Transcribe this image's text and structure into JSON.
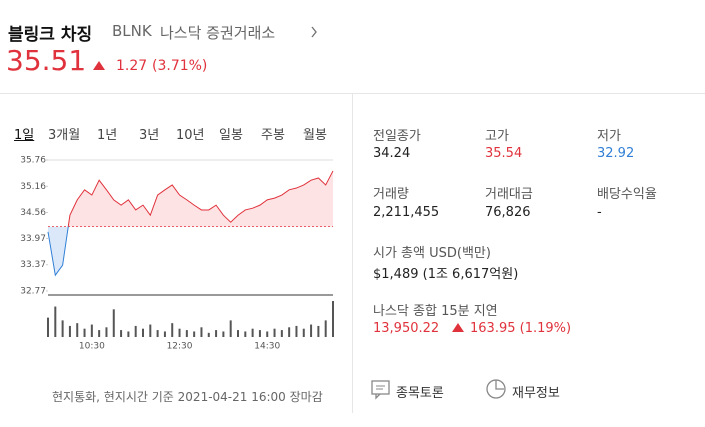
{
  "header": {
    "name": "블링크 차징",
    "ticker": "BLNK",
    "exchange": "나스닥 증권거래소",
    "price": "35.51",
    "change": "1.27",
    "change_pct": "(3.71%)"
  },
  "tabs": [
    "1일",
    "3개월",
    "1년",
    "3년",
    "10년",
    "일봉",
    "주봉",
    "월봉"
  ],
  "chart": {
    "type": "line",
    "x": [
      "09:30",
      "09:40",
      "09:50",
      "10:00",
      "10:10",
      "10:20",
      "10:30",
      "10:40",
      "10:50",
      "11:00",
      "11:10",
      "11:20",
      "11:30",
      "11:40",
      "11:50",
      "12:00",
      "12:10",
      "12:20",
      "12:30",
      "12:40",
      "12:50",
      "13:00",
      "13:10",
      "13:20",
      "13:30",
      "13:40",
      "13:50",
      "14:00",
      "14:10",
      "14:20",
      "14:30",
      "14:40",
      "14:50",
      "15:00",
      "15:10",
      "15:20",
      "15:30",
      "15:40",
      "15:50",
      "16:00"
    ],
    "values": [
      34.12,
      33.13,
      33.36,
      34.5,
      34.85,
      35.08,
      34.96,
      35.3,
      35.08,
      34.85,
      34.73,
      34.85,
      34.62,
      34.73,
      34.5,
      34.96,
      35.08,
      35.19,
      34.96,
      34.85,
      34.73,
      34.62,
      34.62,
      34.73,
      34.5,
      34.34,
      34.5,
      34.62,
      34.66,
      34.73,
      34.85,
      34.89,
      34.96,
      35.08,
      35.12,
      35.19,
      35.3,
      35.35,
      35.19,
      35.51
    ],
    "volume": [
      14,
      22,
      12,
      8,
      10,
      6,
      9,
      5,
      7,
      20,
      5,
      4,
      8,
      6,
      9,
      5,
      4,
      10,
      6,
      5,
      4,
      7,
      3,
      5,
      4,
      12,
      5,
      4,
      6,
      5,
      4,
      6,
      5,
      7,
      8,
      6,
      9,
      8,
      12,
      26
    ],
    "baseline": 34.24,
    "ylim": [
      32.77,
      35.76
    ],
    "yticks": [
      32.77,
      33.37,
      33.97,
      34.56,
      35.16,
      35.76
    ],
    "xticks": [
      "10:30",
      "12:30",
      "14:30"
    ],
    "up_color": "#e0323c",
    "down_color": "#2f7fd6"
  },
  "stats": [
    {
      "label": "전일종가",
      "value": "34.24"
    },
    {
      "label": "고가",
      "value": "35.54"
    },
    {
      "label": "저가",
      "value": "32.92"
    },
    {
      "label": "거래량",
      "value": "2,211,455"
    },
    {
      "label": "거래대금",
      "value": "76,826"
    },
    {
      "label": "배당수익율",
      "value": "-"
    }
  ],
  "market_cap": {
    "label": "시가 총액 USD(백만)",
    "value": "$1,489 (1조 6,617억원)"
  },
  "index": {
    "label": "나스닥 종합 15분 지연",
    "value": "13,950.22",
    "change": "163.95 (1.19%)"
  },
  "footer": {
    "note": "현지통화, 현지시간 기준 2021-04-21 16:00 장마감"
  },
  "buttons": [
    "종목토론",
    "재무정보"
  ]
}
